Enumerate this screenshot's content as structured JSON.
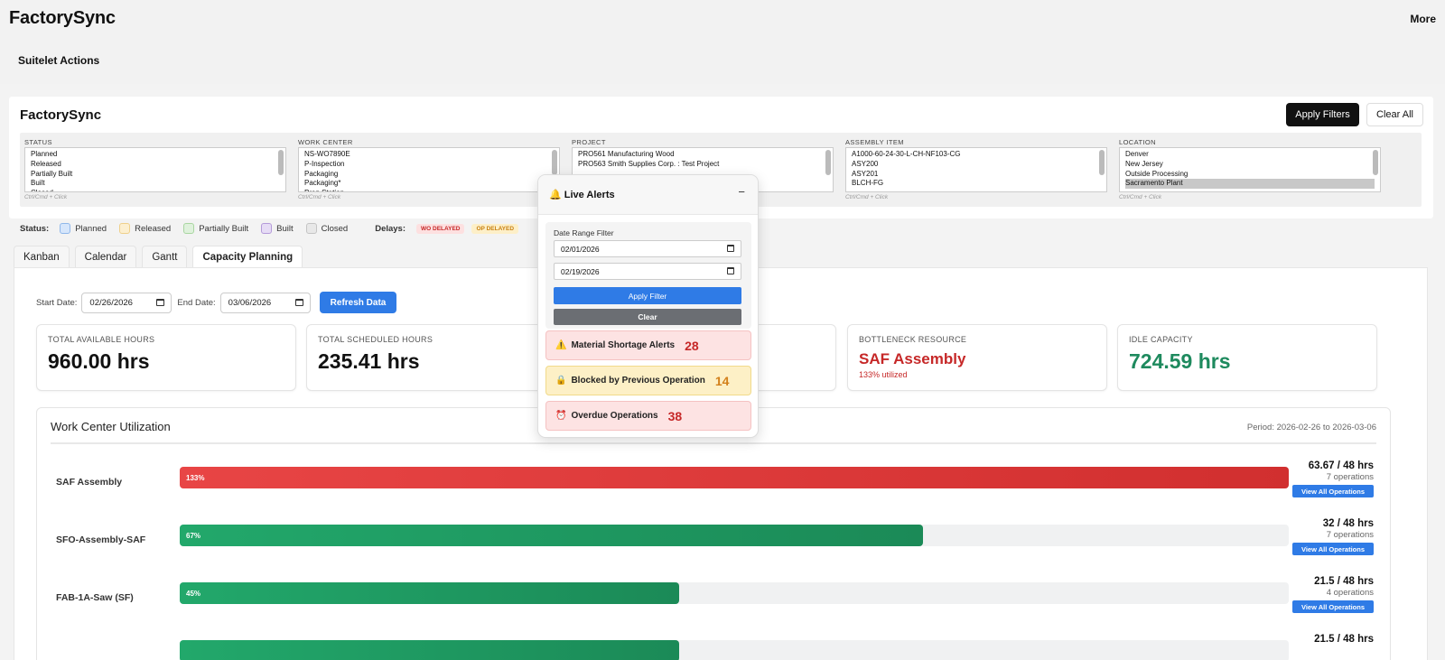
{
  "topbar": {
    "app_title": "FactorySync",
    "more": "More",
    "suitelet_actions": "Suitelet Actions"
  },
  "panel": {
    "title": "FactorySync",
    "apply_filters": "Apply Filters",
    "clear_all": "Clear All"
  },
  "filters": [
    {
      "label": "STATUS",
      "options": [
        "Planned",
        "Released",
        "Partially Built",
        "Built",
        "Closed"
      ],
      "selected": "",
      "hint": "Ctrl/Cmd + Click"
    },
    {
      "label": "WORK CENTER",
      "options": [
        "NS-WO7890E",
        "P-Inspection",
        "Packaging",
        "Packaging*",
        "Prep Station"
      ],
      "selected": "",
      "hint": "Ctrl/Cmd + Click"
    },
    {
      "label": "PROJECT",
      "options": [
        "PRO561 Manufacturing Wood",
        "PRO563 Smith Supplies Corp. : Test Project"
      ],
      "selected": "",
      "hint": "Ctrl/Cmd + Click"
    },
    {
      "label": "ASSEMBLY ITEM",
      "options": [
        "A1000-60-24-30-L-CH-NF103-CG",
        "ASY200",
        "ASY201",
        "BLCH-FG"
      ],
      "selected": "",
      "hint": "Ctrl/Cmd + Click"
    },
    {
      "label": "LOCATION",
      "options": [
        "Denver",
        "New Jersey",
        "Outside Processing",
        "Sacramento Plant"
      ],
      "selected": "Sacramento Plant",
      "hint": "Ctrl/Cmd + Click"
    }
  ],
  "legend": {
    "status_label": "Status:",
    "statuses": [
      {
        "label": "Planned",
        "color": "#d6e6fb",
        "border": "#8fb7ea"
      },
      {
        "label": "Released",
        "color": "#fcefd0",
        "border": "#efd08a"
      },
      {
        "label": "Partially Built",
        "color": "#dff1dc",
        "border": "#a9d6a1"
      },
      {
        "label": "Built",
        "color": "#e6dcf5",
        "border": "#b49ad9"
      },
      {
        "label": "Closed",
        "color": "#e8e8e8",
        "border": "#c4c4c4"
      }
    ],
    "delays_label": "Delays:",
    "wo_delayed": "WO DELAYED",
    "op_delayed": "OP DELAYED"
  },
  "tabs": [
    "Kanban",
    "Calendar",
    "Gantt",
    "Capacity Planning"
  ],
  "active_tab": "Capacity Planning",
  "capacity": {
    "start_label": "Start Date:",
    "start_date": "02/26/2026",
    "end_label": "End Date:",
    "end_date": "03/06/2026",
    "refresh": "Refresh Data",
    "cards": [
      {
        "label": "TOTAL AVAILABLE HOURS",
        "value": "960.00 hrs",
        "sub": "",
        "color": "#111111"
      },
      {
        "label": "TOTAL SCHEDULED HOURS",
        "value": "235.41 hrs",
        "sub": "",
        "color": "#111111"
      },
      {
        "label": "",
        "value": "",
        "sub": "",
        "color": "#111111"
      },
      {
        "label": "BOTTLENECK RESOURCE",
        "value": "SAF Assembly",
        "sub": "133% utilized",
        "color": "#c62828"
      },
      {
        "label": "IDLE CAPACITY",
        "value": "724.59 hrs",
        "sub": "",
        "color": "#1e8a5e"
      }
    ],
    "utilization": {
      "title": "Work Center Utilization",
      "period": "Period: 2026-02-26 to 2026-03-06",
      "view_all": "View All Operations",
      "rows": [
        {
          "name": "SAF Assembly",
          "pct": 133,
          "pct_label": "133%",
          "hours": "63.67 / 48 hrs",
          "ops": "7 operations",
          "status": "over"
        },
        {
          "name": "SFO-Assembly-SAF",
          "pct": 67,
          "pct_label": "67%",
          "hours": "32 / 48 hrs",
          "ops": "7 operations",
          "status": "ok"
        },
        {
          "name": "FAB-1A-Saw (SF)",
          "pct": 45,
          "pct_label": "45%",
          "hours": "21.5 / 48 hrs",
          "ops": "4 operations",
          "status": "ok"
        },
        {
          "name": "",
          "pct": 45,
          "pct_label": "",
          "hours": "21.5 / 48 hrs",
          "ops": "",
          "status": "ok"
        }
      ]
    }
  },
  "alerts": {
    "icon": "bell-icon",
    "title": "Live Alerts",
    "minimize": "−",
    "date_range_label": "Date Range Filter",
    "from": "02/01/2026",
    "to": "02/19/2026",
    "apply": "Apply Filter",
    "clear": "Clear",
    "items": [
      {
        "icon": "warning-icon",
        "glyph": "⚠️",
        "label": "Material Shortage Alerts",
        "count": "28",
        "bg": "#fde3e3",
        "border": "#f5c2c2",
        "countColor": "#c62828"
      },
      {
        "icon": "lock-icon",
        "glyph": "🔒",
        "label": "Blocked by Previous Operation",
        "count": "14",
        "bg": "#fdf0c6",
        "border": "#f1da8a",
        "countColor": "#d3801a"
      },
      {
        "icon": "alarm-clock-icon",
        "glyph": "⏰",
        "label": "Overdue Operations",
        "count": "38",
        "bg": "#fde3e3",
        "border": "#f5c2c2",
        "countColor": "#c62828"
      }
    ]
  }
}
